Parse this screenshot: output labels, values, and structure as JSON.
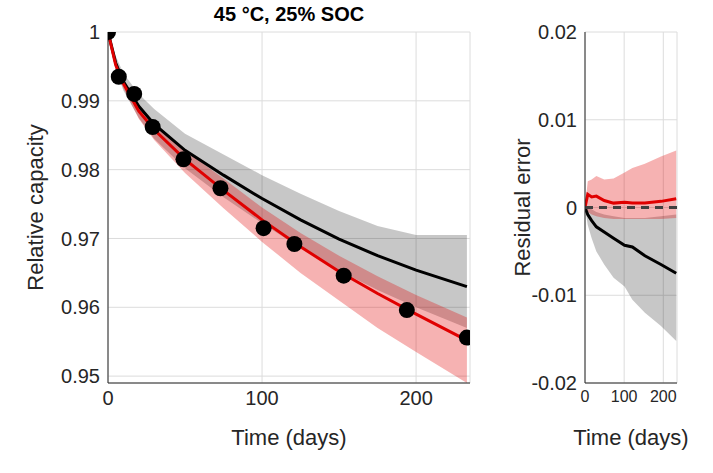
{
  "chart_data": [
    {
      "type": "line",
      "title": "45 °C, 25% SOC",
      "xlabel": "Time (days)",
      "ylabel": "Relative capacity",
      "xlim": [
        0,
        235
      ],
      "xticks": [
        0,
        100,
        200
      ],
      "ylim": [
        0.949,
        1
      ],
      "yticks": [
        0.95,
        0.96,
        0.97,
        0.98,
        0.99,
        1
      ],
      "grid": true,
      "series": [
        {
          "type": "line",
          "color": "#000000",
          "line_style": "solid",
          "x": [
            0,
            5,
            10,
            20,
            30,
            50,
            75,
            100,
            125,
            150,
            175,
            200,
            233
          ],
          "values": [
            1,
            0.9955,
            0.9928,
            0.9892,
            0.9866,
            0.9828,
            0.9792,
            0.9758,
            0.9727,
            0.9699,
            0.9675,
            0.9654,
            0.963
          ],
          "lower": [
            1,
            0.9945,
            0.9915,
            0.9875,
            0.9845,
            0.9802,
            0.976,
            0.9722,
            0.9686,
            0.9653,
            0.9625,
            0.96,
            0.957
          ],
          "upper": [
            1,
            0.9965,
            0.994,
            0.991,
            0.9888,
            0.9852,
            0.9822,
            0.9792,
            0.9765,
            0.974,
            0.9718,
            0.9705,
            0.9705
          ]
        },
        {
          "type": "scatter",
          "color": "#000000",
          "marker": "circle",
          "x": [
            0,
            7,
            17,
            29,
            49,
            73,
            101,
            121,
            153,
            194,
            233
          ],
          "values": [
            1,
            0.9935,
            0.991,
            0.9862,
            0.9815,
            0.9773,
            0.9715,
            0.9692,
            0.9646,
            0.9596,
            0.9556
          ]
        },
        {
          "type": "line",
          "color": "#e00000",
          "line_style": "solid",
          "x": [
            0,
            5,
            10,
            20,
            30,
            50,
            75,
            100,
            125,
            150,
            175,
            200,
            233
          ],
          "values": [
            1,
            0.9952,
            0.9925,
            0.9885,
            0.9858,
            0.9815,
            0.977,
            0.9727,
            0.9688,
            0.9652,
            0.962,
            0.959,
            0.9552
          ],
          "lower": [
            1,
            0.9947,
            0.9918,
            0.9874,
            0.9843,
            0.9795,
            0.9744,
            0.9695,
            0.965,
            0.961,
            0.957,
            0.9535,
            0.949
          ],
          "upper": [
            1,
            0.9957,
            0.993,
            0.9893,
            0.9868,
            0.9828,
            0.9787,
            0.9745,
            0.9708,
            0.9675,
            0.9645,
            0.9618,
            0.9585
          ]
        }
      ]
    },
    {
      "type": "line",
      "xlabel": "Time (days)",
      "ylabel": "Residual error",
      "xlim": [
        0,
        235
      ],
      "xticks": [
        0,
        100,
        200
      ],
      "ylim": [
        -0.02,
        0.02
      ],
      "yticks": [
        -0.02,
        -0.01,
        0,
        0.01,
        0.02
      ],
      "grid": true,
      "series": [
        {
          "type": "line",
          "color": "#000000",
          "line_style": "solid",
          "x": [
            0,
            7,
            17,
            29,
            49,
            73,
            101,
            121,
            153,
            194,
            233
          ],
          "values": [
            0,
            -0.0008,
            -0.0015,
            -0.0022,
            -0.0028,
            -0.0035,
            -0.0043,
            -0.0045,
            -0.0055,
            -0.0065,
            -0.0075
          ],
          "lower": [
            0,
            -0.002,
            -0.0035,
            -0.005,
            -0.0065,
            -0.008,
            -0.009,
            -0.0105,
            -0.012,
            -0.0135,
            -0.0152
          ],
          "upper": [
            0,
            0,
            -0.0002,
            -0.0005,
            -0.0008,
            -0.001,
            -0.0012,
            -0.0012,
            -0.0012,
            -0.001,
            -0.0008
          ]
        },
        {
          "type": "line",
          "color": "#e00000",
          "line_style": "solid",
          "x": [
            0,
            7,
            17,
            29,
            49,
            73,
            101,
            121,
            153,
            194,
            233
          ],
          "values": [
            0,
            0.0015,
            0.0012,
            0.0013,
            0.0008,
            0.0005,
            0.0006,
            0.0005,
            0.0005,
            0.0007,
            0.001
          ],
          "lower": [
            0,
            -0.0005,
            -0.0008,
            -0.001,
            -0.0012,
            -0.0013,
            -0.0013,
            -0.0013,
            -0.0013,
            -0.0013,
            -0.0012
          ],
          "upper": [
            0,
            0.003,
            0.0032,
            0.0036,
            0.0032,
            0.0033,
            0.004,
            0.0045,
            0.005,
            0.0058,
            0.0065
          ]
        },
        {
          "type": "line",
          "color": "#404040",
          "line_style": "dashed",
          "x": [
            0,
            235
          ],
          "values": [
            0,
            0
          ]
        }
      ]
    }
  ]
}
